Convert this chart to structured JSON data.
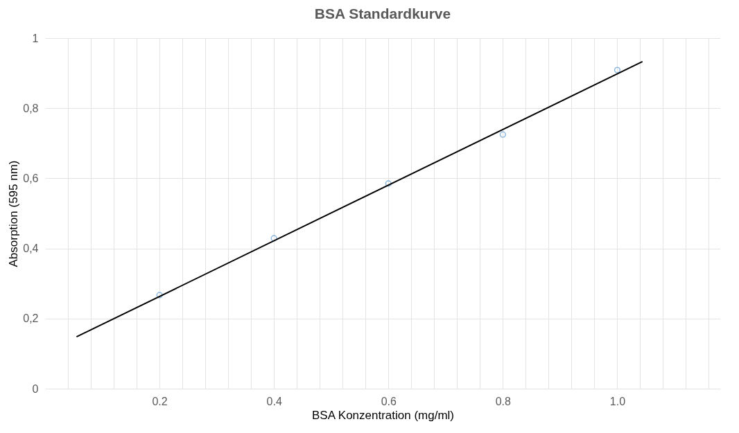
{
  "chart_data": {
    "type": "scatter",
    "title": "BSA  Standardkurve",
    "xlabel": "BSA Konzentration (mg/ml)",
    "ylabel": "Absorption (595 nm)",
    "x": [
      0.2,
      0.4,
      0.6,
      0.8,
      1.0
    ],
    "series": [
      {
        "color": "#5b9bd5",
        "marker": "circle",
        "values": [
          0.267,
          0.429,
          0.585,
          0.725,
          0.909
        ]
      },
      {
        "type": "line",
        "color": "#000000",
        "x": [
          0.055,
          1.044
        ],
        "values": [
          0.148,
          0.933
        ]
      }
    ],
    "xlim": [
      0,
      1.18
    ],
    "xticks": [
      {
        "value": 0.04,
        "label": null
      },
      {
        "value": 0.08,
        "label": null
      },
      {
        "value": 0.12,
        "label": null
      },
      {
        "value": 0.16,
        "label": null
      },
      0.2,
      {
        "value": 0.24,
        "label": null
      },
      {
        "value": 0.28,
        "label": null
      },
      {
        "value": 0.32,
        "label": null
      },
      {
        "value": 0.36,
        "label": null
      },
      0.4,
      {
        "value": 0.44,
        "label": null
      },
      {
        "value": 0.48,
        "label": null
      },
      {
        "value": 0.52,
        "label": null
      },
      {
        "value": 0.56,
        "label": null
      },
      0.6,
      {
        "value": 0.64,
        "label": null
      },
      {
        "value": 0.68,
        "label": null
      },
      {
        "value": 0.72,
        "label": null
      },
      {
        "value": 0.76,
        "label": null
      },
      0.8,
      {
        "value": 0.84,
        "label": null
      },
      {
        "value": 0.88,
        "label": null
      },
      {
        "value": 0.92,
        "label": null
      },
      {
        "value": 0.96,
        "label": null
      },
      {
        "value": 1.0,
        "label": "1.0"
      },
      {
        "value": 1.04,
        "label": null
      },
      {
        "value": 1.08,
        "label": null
      },
      {
        "value": 1.12,
        "label": null
      },
      {
        "value": 1.16,
        "label": null
      }
    ],
    "ylim": [
      0,
      1
    ],
    "yticks": [
      0,
      {
        "value": 0.2,
        "label": "0,2"
      },
      {
        "value": 0.4,
        "label": "0,4"
      },
      {
        "value": 0.6,
        "label": "0,6"
      },
      {
        "value": 0.8,
        "label": "0,8"
      },
      1
    ],
    "grid": true
  }
}
